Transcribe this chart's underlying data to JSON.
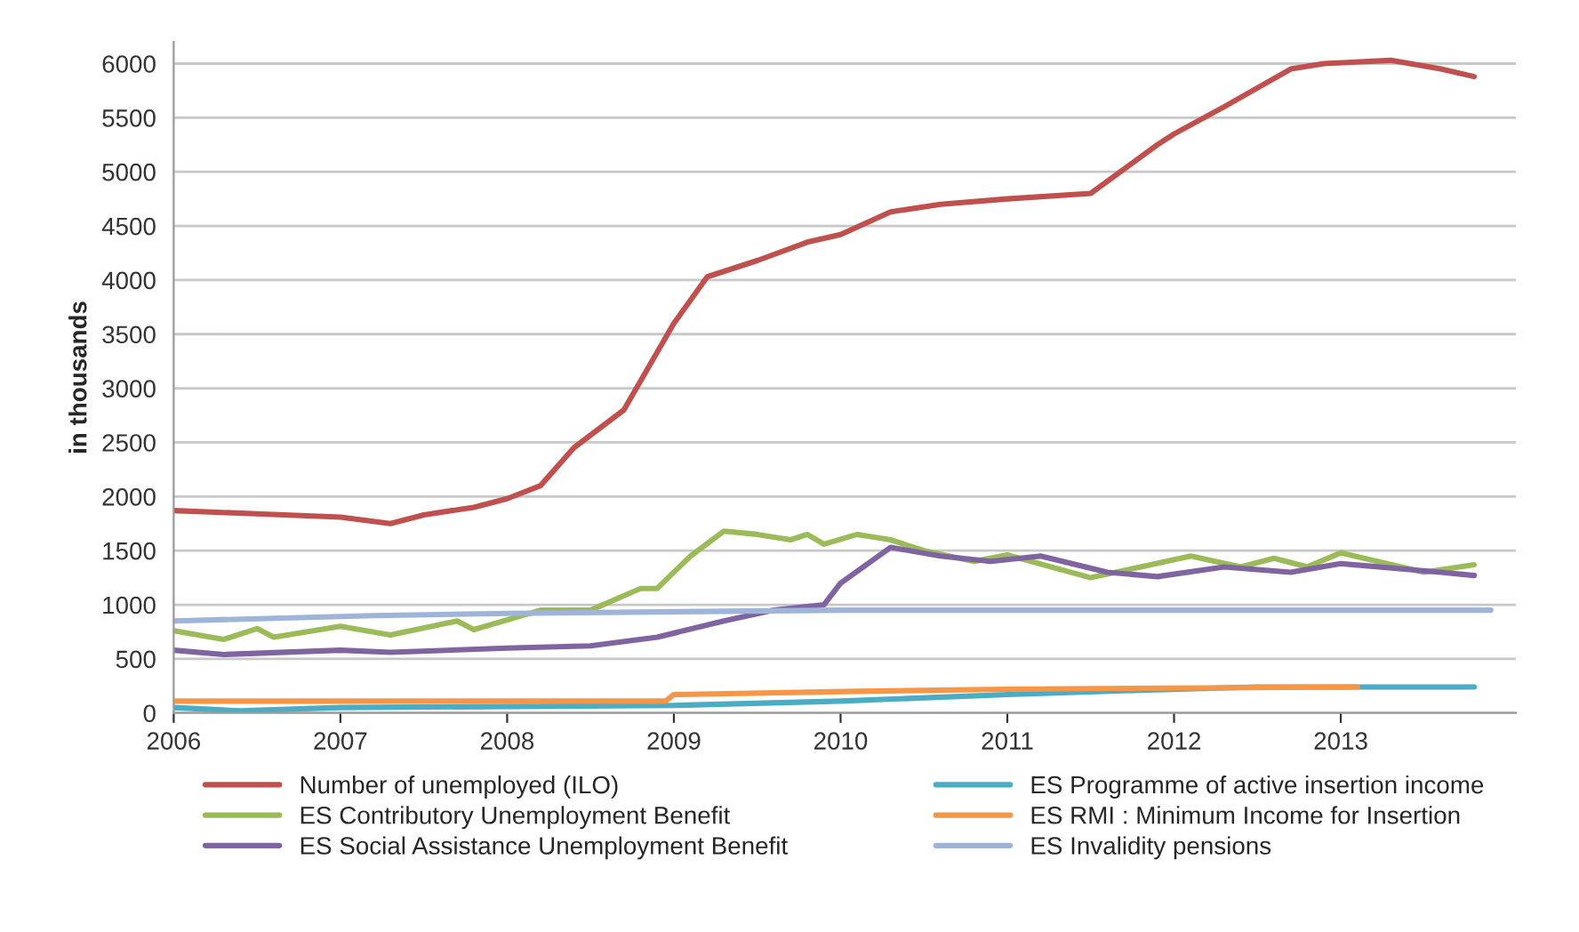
{
  "chart_data": {
    "type": "line",
    "ylabel": "in thousands",
    "xlim": [
      2006,
      2014.05
    ],
    "xticks": [
      2006,
      2007,
      2008,
      2009,
      2010,
      2011,
      2012,
      2013
    ],
    "ylim": [
      0,
      6200
    ],
    "yticks": [
      0,
      500,
      1000,
      1500,
      2000,
      2500,
      3000,
      3500,
      4000,
      4500,
      5000,
      5500,
      6000
    ],
    "grid": "y",
    "legend": "bottom",
    "line_style": "solid",
    "marker": "none",
    "series": [
      {
        "name": "Number of unemployed (ILO)",
        "color": "#c0504d",
        "x": [
          2006.0,
          2006.5,
          2007.0,
          2007.3,
          2007.5,
          2007.8,
          2008.0,
          2008.2,
          2008.4,
          2008.7,
          2009.0,
          2009.2,
          2009.5,
          2009.8,
          2010.0,
          2010.3,
          2010.6,
          2011.0,
          2011.5,
          2011.9,
          2012.0,
          2012.3,
          2012.7,
          2012.9,
          2013.3,
          2013.6,
          2013.8
        ],
        "values": [
          1870,
          1840,
          1810,
          1750,
          1830,
          1900,
          1980,
          2100,
          2450,
          2800,
          3600,
          4030,
          4180,
          4350,
          4420,
          4630,
          4700,
          4750,
          4800,
          5250,
          5350,
          5600,
          5950,
          6000,
          6030,
          5950,
          5880
        ]
      },
      {
        "name": "ES Contributory Unemployment Benefit",
        "color": "#9bbb59",
        "x": [
          2006.0,
          2006.3,
          2006.5,
          2006.6,
          2007.0,
          2007.3,
          2007.7,
          2007.8,
          2008.2,
          2008.5,
          2008.8,
          2008.9,
          2009.1,
          2009.3,
          2009.5,
          2009.7,
          2009.8,
          2009.9,
          2010.1,
          2010.3,
          2010.5,
          2010.8,
          2011.0,
          2011.5,
          2011.8,
          2012.1,
          2012.4,
          2012.6,
          2012.8,
          2013.0,
          2013.5,
          2013.8
        ],
        "values": [
          760,
          680,
          780,
          700,
          800,
          720,
          850,
          770,
          950,
          950,
          1150,
          1150,
          1450,
          1680,
          1650,
          1600,
          1650,
          1560,
          1650,
          1600,
          1500,
          1400,
          1460,
          1250,
          1350,
          1450,
          1350,
          1430,
          1350,
          1480,
          1300,
          1370
        ]
      },
      {
        "name": "ES Social Assistance Unemployment Benefit",
        "color": "#8064a2",
        "x": [
          2006.0,
          2006.3,
          2007.0,
          2007.3,
          2008.0,
          2008.5,
          2008.9,
          2009.3,
          2009.6,
          2009.9,
          2010.0,
          2010.3,
          2010.6,
          2010.9,
          2011.2,
          2011.6,
          2011.9,
          2012.3,
          2012.7,
          2013.0,
          2013.6,
          2013.8
        ],
        "values": [
          580,
          540,
          580,
          560,
          600,
          620,
          700,
          850,
          950,
          1000,
          1200,
          1530,
          1450,
          1400,
          1450,
          1300,
          1260,
          1350,
          1300,
          1380,
          1300,
          1270
        ]
      },
      {
        "name": "ES Programme of active insertion income",
        "color": "#4bacc6",
        "x": [
          2006.0,
          2006.4,
          2007.0,
          2009.0,
          2010.0,
          2011.0,
          2011.8,
          2012.5,
          2013.8
        ],
        "values": [
          50,
          20,
          50,
          70,
          110,
          170,
          210,
          240,
          240
        ]
      },
      {
        "name": "ES RMI : Minimum Income for Insertion",
        "color": "#f79646",
        "x": [
          2006.0,
          2008.95,
          2009.0,
          2010.1,
          2011.0,
          2012.0,
          2013.1
        ],
        "values": [
          110,
          110,
          170,
          200,
          220,
          230,
          240
        ]
      },
      {
        "name": "ES Invalidity pensions",
        "color": "#9eb4d8",
        "x": [
          2006.0,
          2007.2,
          2008.0,
          2010.0,
          2013.9
        ],
        "values": [
          850,
          900,
          920,
          950,
          950
        ]
      }
    ]
  }
}
